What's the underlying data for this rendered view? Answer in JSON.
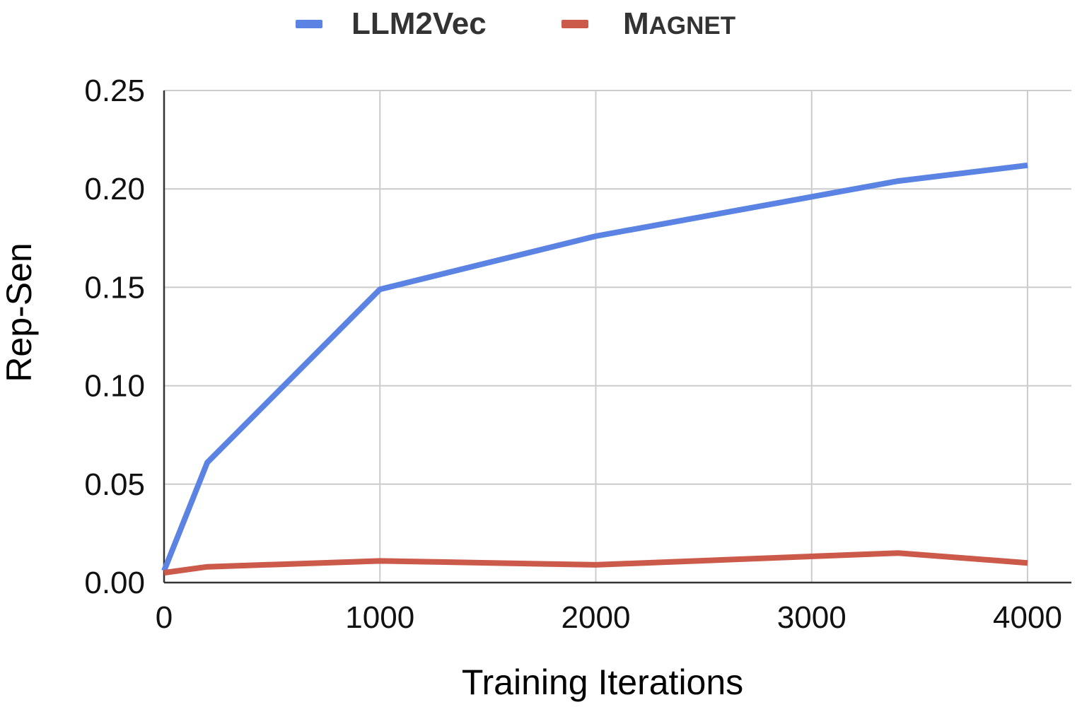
{
  "chart_data": {
    "type": "line",
    "xlabel": "Training Iterations",
    "ylabel": "Rep-Sen",
    "xlim": [
      0,
      4000
    ],
    "ylim": [
      0,
      0.25
    ],
    "x_ticks": [
      "0",
      "1000",
      "2000",
      "3000",
      "4000"
    ],
    "y_ticks": [
      "0.00",
      "0.05",
      "0.10",
      "0.15",
      "0.20",
      "0.25"
    ],
    "grid": true,
    "legend_position": "top",
    "series": [
      {
        "name": "LLM2Vec",
        "color": "#5B83E3",
        "x": [
          0,
          200,
          1000,
          2000,
          3400,
          4000
        ],
        "y": [
          0.006,
          0.061,
          0.149,
          0.176,
          0.204,
          0.212
        ]
      },
      {
        "name": "Magnet",
        "name_initial": "M",
        "name_rest": "AGNET",
        "color": "#CC5A4A",
        "x": [
          0,
          200,
          1000,
          2000,
          3400,
          4000
        ],
        "y": [
          0.005,
          0.008,
          0.011,
          0.009,
          0.015,
          0.01
        ]
      }
    ]
  }
}
